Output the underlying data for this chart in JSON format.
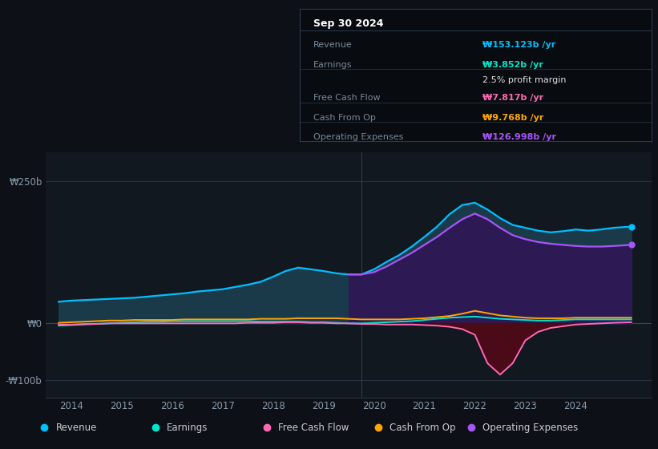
{
  "bg_color": "#0d1117",
  "plot_bg_color": "#111820",
  "title_box": {
    "date": "Sep 30 2024",
    "rows": [
      {
        "label": "Revenue",
        "value": "₩153.123b /yr",
        "value_color": "#00bfff"
      },
      {
        "label": "Earnings",
        "value": "₩3.852b /yr",
        "value_color": "#00e5cc"
      },
      {
        "label": "",
        "value": "2.5% profit margin",
        "value_color": "#ffffff"
      },
      {
        "label": "Free Cash Flow",
        "value": "₩7.817b /yr",
        "value_color": "#ff69b4"
      },
      {
        "label": "Cash From Op",
        "value": "₩9.768b /yr",
        "value_color": "#ffa500"
      },
      {
        "label": "Operating Expenses",
        "value": "₩126.998b /yr",
        "value_color": "#a855f7"
      }
    ]
  },
  "yticks_labels": [
    "₩250b",
    "₩0",
    "-₩100b"
  ],
  "yticks_values": [
    250,
    0,
    -100
  ],
  "ylim": [
    -130,
    300
  ],
  "xlim": [
    2013.5,
    2025.5
  ],
  "xticks": [
    2014,
    2015,
    2016,
    2017,
    2018,
    2019,
    2020,
    2021,
    2022,
    2023,
    2024
  ],
  "shaded_region_start": 2019.75,
  "revenue": {
    "x": [
      2013.75,
      2014.0,
      2014.25,
      2014.5,
      2014.75,
      2015.0,
      2015.25,
      2015.5,
      2015.75,
      2016.0,
      2016.25,
      2016.5,
      2016.75,
      2017.0,
      2017.25,
      2017.5,
      2017.75,
      2018.0,
      2018.25,
      2018.5,
      2018.75,
      2019.0,
      2019.25,
      2019.5,
      2019.75,
      2020.0,
      2020.25,
      2020.5,
      2020.75,
      2021.0,
      2021.25,
      2021.5,
      2021.75,
      2022.0,
      2022.25,
      2022.5,
      2022.75,
      2023.0,
      2023.25,
      2023.5,
      2023.75,
      2024.0,
      2024.25,
      2024.5,
      2024.75,
      2025.1
    ],
    "y": [
      38,
      40,
      41,
      42,
      43,
      44,
      45,
      47,
      49,
      51,
      53,
      56,
      58,
      60,
      64,
      68,
      73,
      82,
      92,
      98,
      95,
      92,
      88,
      86,
      86,
      95,
      108,
      120,
      135,
      152,
      170,
      192,
      208,
      212,
      200,
      185,
      173,
      168,
      163,
      160,
      162,
      165,
      163,
      165,
      168,
      170
    ]
  },
  "earnings": {
    "x": [
      2013.75,
      2014.0,
      2014.25,
      2014.5,
      2014.75,
      2015.0,
      2015.25,
      2015.5,
      2015.75,
      2016.0,
      2016.25,
      2016.5,
      2016.75,
      2017.0,
      2017.25,
      2017.5,
      2017.75,
      2018.0,
      2018.25,
      2018.5,
      2018.75,
      2019.0,
      2019.25,
      2019.5,
      2019.75,
      2020.0,
      2020.25,
      2020.5,
      2020.75,
      2021.0,
      2021.25,
      2021.5,
      2021.75,
      2022.0,
      2022.25,
      2022.5,
      2022.75,
      2023.0,
      2023.25,
      2023.5,
      2023.75,
      2024.0,
      2024.25,
      2024.5,
      2024.75,
      2025.1
    ],
    "y": [
      -4,
      -3,
      -2,
      -1,
      0,
      1,
      2,
      3,
      3,
      4,
      4,
      4,
      4,
      4,
      4,
      4,
      3,
      3,
      3,
      3,
      2,
      2,
      1,
      0,
      0,
      1,
      2,
      3,
      4,
      6,
      8,
      10,
      11,
      12,
      10,
      8,
      7,
      6,
      5,
      5,
      6,
      7,
      7,
      7,
      7,
      7
    ]
  },
  "free_cash_flow": {
    "x": [
      2013.75,
      2014.0,
      2014.25,
      2014.5,
      2014.75,
      2015.0,
      2015.25,
      2015.5,
      2015.75,
      2016.0,
      2016.25,
      2016.5,
      2016.75,
      2017.0,
      2017.25,
      2017.5,
      2017.75,
      2018.0,
      2018.25,
      2018.5,
      2018.75,
      2019.0,
      2019.25,
      2019.5,
      2019.75,
      2020.0,
      2020.25,
      2020.5,
      2020.75,
      2021.0,
      2021.25,
      2021.5,
      2021.75,
      2022.0,
      2022.25,
      2022.5,
      2022.75,
      2023.0,
      2023.25,
      2023.5,
      2023.75,
      2024.0,
      2024.25,
      2024.5,
      2024.75,
      2025.1
    ],
    "y": [
      -2,
      -2,
      -1,
      -1,
      0,
      0,
      0,
      0,
      0,
      0,
      0,
      0,
      0,
      0,
      0,
      1,
      1,
      1,
      2,
      2,
      1,
      1,
      0,
      0,
      -1,
      -1,
      -2,
      -2,
      -2,
      -3,
      -4,
      -6,
      -10,
      -20,
      -70,
      -90,
      -70,
      -30,
      -15,
      -8,
      -5,
      -2,
      -1,
      0,
      1,
      2
    ]
  },
  "cash_from_op": {
    "x": [
      2013.75,
      2014.0,
      2014.25,
      2014.5,
      2014.75,
      2015.0,
      2015.25,
      2015.5,
      2015.75,
      2016.0,
      2016.25,
      2016.5,
      2016.75,
      2017.0,
      2017.25,
      2017.5,
      2017.75,
      2018.0,
      2018.25,
      2018.5,
      2018.75,
      2019.0,
      2019.25,
      2019.5,
      2019.75,
      2020.0,
      2020.25,
      2020.5,
      2020.75,
      2021.0,
      2021.25,
      2021.5,
      2021.75,
      2022.0,
      2022.25,
      2022.5,
      2022.75,
      2023.0,
      2023.25,
      2023.5,
      2023.75,
      2024.0,
      2024.25,
      2024.5,
      2024.75,
      2025.1
    ],
    "y": [
      1,
      2,
      3,
      4,
      5,
      5,
      6,
      6,
      6,
      6,
      7,
      7,
      7,
      7,
      7,
      7,
      8,
      8,
      8,
      9,
      9,
      9,
      9,
      8,
      7,
      7,
      7,
      7,
      8,
      9,
      11,
      13,
      17,
      22,
      18,
      14,
      12,
      10,
      9,
      9,
      9,
      10,
      10,
      10,
      10,
      10
    ]
  },
  "op_expenses": {
    "x": [
      2019.5,
      2019.75,
      2020.0,
      2020.25,
      2020.5,
      2020.75,
      2021.0,
      2021.25,
      2021.5,
      2021.75,
      2022.0,
      2022.25,
      2022.5,
      2022.75,
      2023.0,
      2023.25,
      2023.5,
      2023.75,
      2024.0,
      2024.25,
      2024.5,
      2024.75,
      2025.1
    ],
    "y": [
      86,
      86,
      90,
      100,
      112,
      124,
      138,
      152,
      168,
      183,
      193,
      183,
      168,
      155,
      148,
      143,
      140,
      138,
      136,
      135,
      135,
      136,
      138
    ]
  },
  "colors": {
    "revenue": "#00bfff",
    "earnings": "#00e5cc",
    "free_cash_flow": "#ff69b4",
    "cash_from_op": "#ffa500",
    "op_expenses": "#a855f7",
    "revenue_fill_left": "#1a3a4a",
    "revenue_fill_right": "#1a2a3a",
    "op_expenses_fill": "#2d1a55",
    "fcf_fill_neg": "#4a0a18"
  },
  "legend": [
    {
      "label": "Revenue",
      "color": "#00bfff"
    },
    {
      "label": "Earnings",
      "color": "#00e5cc"
    },
    {
      "label": "Free Cash Flow",
      "color": "#ff69b4"
    },
    {
      "label": "Cash From Op",
      "color": "#ffa500"
    },
    {
      "label": "Operating Expenses",
      "color": "#a855f7"
    }
  ]
}
